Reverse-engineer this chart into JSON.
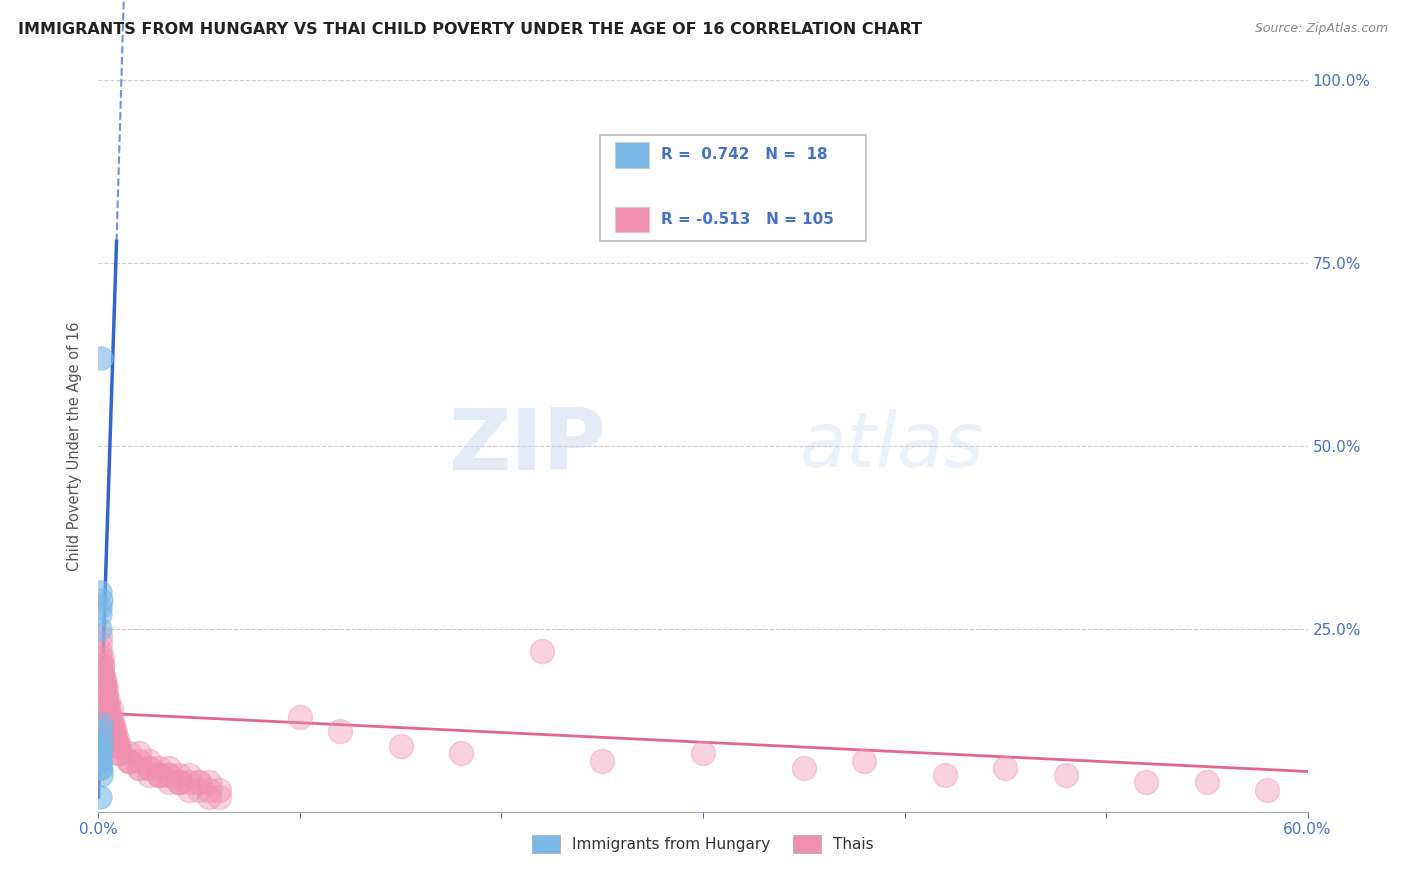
{
  "title": "IMMIGRANTS FROM HUNGARY VS THAI CHILD POVERTY UNDER THE AGE OF 16 CORRELATION CHART",
  "source": "Source: ZipAtlas.com",
  "ylabel": "Child Poverty Under the Age of 16",
  "legend_entries": [
    {
      "label": "Immigrants from Hungary",
      "R": 0.742,
      "N": 18,
      "color": "#a8cce8"
    },
    {
      "label": "Thais",
      "R": -0.513,
      "N": 105,
      "color": "#f0a0bc"
    }
  ],
  "watermark_zip": "ZIP",
  "watermark_atlas": "atlas",
  "background_color": "#ffffff",
  "plot_background": "#ffffff",
  "blue_scatter_x": [
    0.0008,
    0.0012,
    0.001,
    0.0007,
    0.0011,
    0.0009,
    0.0013,
    0.0011,
    0.0007,
    0.0009,
    0.001,
    0.0011,
    0.0008,
    0.0008,
    0.0006,
    0.0012,
    0.0011,
    0.0007
  ],
  "blue_scatter_y": [
    0.3,
    0.62,
    0.27,
    0.25,
    0.29,
    0.28,
    0.1,
    0.12,
    0.11,
    0.08,
    0.07,
    0.09,
    0.06,
    0.07,
    0.08,
    0.06,
    0.05,
    0.02
  ],
  "pink_scatter_x": [
    0.001,
    0.002,
    0.001,
    0.003,
    0.002,
    0.004,
    0.005,
    0.006,
    0.003,
    0.001,
    0.001,
    0.002,
    0.002,
    0.003,
    0.003,
    0.004,
    0.004,
    0.005,
    0.005,
    0.006,
    0.006,
    0.007,
    0.007,
    0.008,
    0.008,
    0.009,
    0.009,
    0.01,
    0.01,
    0.015,
    0.015,
    0.02,
    0.02,
    0.025,
    0.025,
    0.03,
    0.03,
    0.035,
    0.035,
    0.04,
    0.04,
    0.045,
    0.05,
    0.055,
    0.06,
    0.001,
    0.001,
    0.002,
    0.002,
    0.003,
    0.003,
    0.004,
    0.004,
    0.005,
    0.006,
    0.007,
    0.008,
    0.009,
    0.01,
    0.015,
    0.02,
    0.025,
    0.03,
    0.035,
    0.04,
    0.045,
    0.05,
    0.055,
    0.001,
    0.002,
    0.003,
    0.004,
    0.005,
    0.006,
    0.007,
    0.008,
    0.009,
    0.01,
    0.015,
    0.02,
    0.025,
    0.03,
    0.035,
    0.04,
    0.045,
    0.05,
    0.055,
    0.06,
    0.1,
    0.12,
    0.15,
    0.18,
    0.22,
    0.25,
    0.3,
    0.35,
    0.38,
    0.42,
    0.45,
    0.48,
    0.52,
    0.55,
    0.58
  ],
  "pink_scatter_y": [
    0.22,
    0.2,
    0.18,
    0.17,
    0.19,
    0.16,
    0.15,
    0.14,
    0.18,
    0.24,
    0.2,
    0.21,
    0.19,
    0.18,
    0.16,
    0.17,
    0.15,
    0.14,
    0.13,
    0.13,
    0.12,
    0.12,
    0.11,
    0.11,
    0.1,
    0.1,
    0.09,
    0.09,
    0.08,
    0.08,
    0.07,
    0.07,
    0.08,
    0.06,
    0.07,
    0.06,
    0.05,
    0.05,
    0.06,
    0.05,
    0.04,
    0.05,
    0.04,
    0.04,
    0.03,
    0.23,
    0.19,
    0.2,
    0.18,
    0.17,
    0.15,
    0.16,
    0.14,
    0.13,
    0.12,
    0.11,
    0.1,
    0.09,
    0.08,
    0.07,
    0.06,
    0.06,
    0.05,
    0.05,
    0.04,
    0.04,
    0.04,
    0.03,
    0.21,
    0.19,
    0.17,
    0.15,
    0.14,
    0.12,
    0.11,
    0.1,
    0.09,
    0.08,
    0.07,
    0.06,
    0.05,
    0.05,
    0.04,
    0.04,
    0.03,
    0.03,
    0.02,
    0.02,
    0.13,
    0.11,
    0.09,
    0.08,
    0.22,
    0.07,
    0.08,
    0.06,
    0.07,
    0.05,
    0.06,
    0.05,
    0.04,
    0.04,
    0.03
  ],
  "xmin": 0.0,
  "xmax": 0.6,
  "ymin": 0.0,
  "ymax": 1.0,
  "title_color": "#222222",
  "axis_color": "#4472c4",
  "dot_blue_color": "#7ab8e8",
  "dot_pink_color": "#f090b0",
  "line_blue_color": "#3366cc",
  "line_pink_color": "#e06888",
  "grid_color": "#cccccc",
  "grid_style": "--"
}
